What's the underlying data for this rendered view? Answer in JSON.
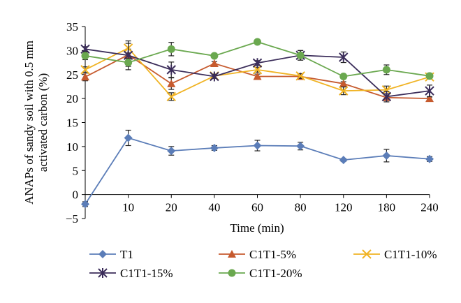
{
  "chart_data": {
    "type": "line",
    "xlabel": "Time (min)",
    "ylabel_lines": [
      "ANAPs of sandy soil with 0.5 mm",
      "activated carbon (%)"
    ],
    "categories": [
      "0",
      "10",
      "20",
      "40",
      "60",
      "80",
      "120",
      "180",
      "240"
    ],
    "ylim": [
      -5,
      35
    ],
    "yticks": [
      -5,
      0,
      5,
      10,
      15,
      20,
      25,
      30,
      35
    ],
    "grid": false,
    "legend_position": "bottom",
    "series": [
      {
        "name": "T1",
        "color": "#5b7db8",
        "marker": "diamond",
        "values": [
          -2,
          11.8,
          9.1,
          9.7,
          10.2,
          10.1,
          7.2,
          8.1,
          7.4
        ],
        "errors": [
          0.5,
          1.6,
          0.9,
          0.5,
          1.1,
          0.8,
          0.3,
          1.3,
          0.5
        ]
      },
      {
        "name": "C1T1-5%",
        "color": "#c65a2e",
        "marker": "triangle",
        "values": [
          24.5,
          29.1,
          23.1,
          27.3,
          24.6,
          24.6,
          23.1,
          20.2,
          20
        ],
        "errors": [
          0.8,
          1.2,
          1.2,
          0.4,
          0.5,
          0.4,
          0.4,
          0.5,
          0.3
        ]
      },
      {
        "name": "C1T1-10%",
        "color": "#f0b323",
        "marker": "x",
        "values": [
          26,
          30.5,
          20.4,
          24.7,
          26,
          24.7,
          21.6,
          21.8,
          24.5
        ],
        "errors": [
          0.6,
          1.0,
          0.8,
          0.4,
          0.5,
          0.5,
          0.8,
          0.8,
          0.4
        ]
      },
      {
        "name": "C1T1-15%",
        "color": "#3b2d5a",
        "marker": "star",
        "values": [
          30.3,
          29,
          26,
          24.6,
          27.4,
          29,
          28.6,
          20.4,
          21.6
        ],
        "errors": [
          0.5,
          3.0,
          1.6,
          0.4,
          0.5,
          1.0,
          1.1,
          1.1,
          1.2
        ]
      },
      {
        "name": "C1T1-20%",
        "color": "#6aa84f",
        "marker": "circle",
        "values": [
          28.9,
          27.5,
          30.3,
          28.9,
          31.8,
          29,
          24.6,
          26,
          24.7
        ],
        "errors": [
          0.8,
          0.8,
          1.4,
          0.4,
          0.4,
          1.0,
          0.4,
          1.0,
          0.5
        ]
      }
    ]
  }
}
